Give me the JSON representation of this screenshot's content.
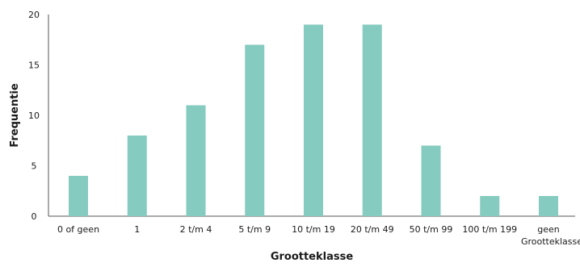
{
  "chart_data": {
    "type": "bar",
    "title": "",
    "xlabel": "Grootteklasse",
    "ylabel": "Frequentie",
    "categories": [
      [
        "0 of geen"
      ],
      [
        "1"
      ],
      [
        "2 t/m 4"
      ],
      [
        "5 t/m 9"
      ],
      [
        "10 t/m 19"
      ],
      [
        "20 t/m 49"
      ],
      [
        "50 t/m 99"
      ],
      [
        "100 t/m 199"
      ],
      [
        "geen",
        "Grootteklasse"
      ]
    ],
    "values": [
      4,
      8,
      11,
      17,
      19,
      19,
      7,
      2,
      2
    ],
    "ylim": [
      0,
      20
    ],
    "yticks": [
      "0",
      "5",
      "10",
      "15",
      "20"
    ],
    "grid": false,
    "bar_color": "#85cbbf",
    "axis_color": "#555555"
  }
}
